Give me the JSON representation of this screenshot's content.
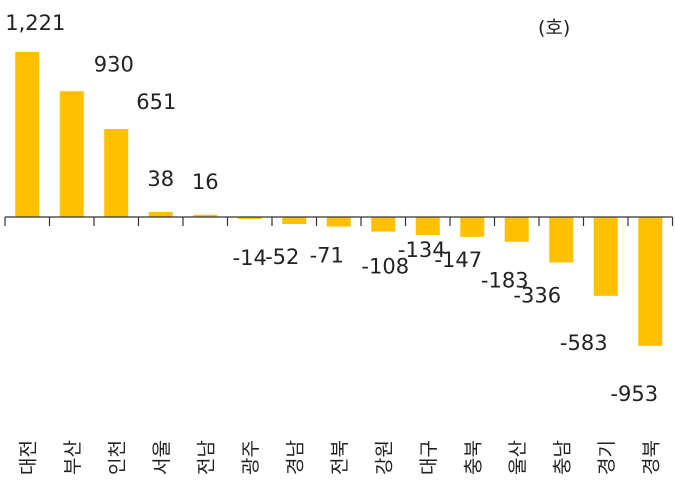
{
  "chart_data": {
    "type": "bar",
    "unit_label": "(호)",
    "categories": [
      "대전",
      "부산",
      "인천",
      "서울",
      "전남",
      "광주",
      "경남",
      "전북",
      "강원",
      "대구",
      "충북",
      "울산",
      "충남",
      "경기",
      "경북"
    ],
    "values": [
      1221,
      930,
      651,
      38,
      16,
      -14,
      -52,
      -71,
      -108,
      -134,
      -147,
      -183,
      -336,
      -583,
      -953
    ],
    "value_labels": [
      "1,221",
      "930",
      "651",
      "38",
      "16",
      "-14",
      "-52",
      "-71",
      "-108",
      "-134",
      "-147",
      "-183",
      "-336",
      "-583",
      "-953"
    ],
    "ylim": [
      -953,
      1221
    ],
    "bar_color": "#FFC000",
    "axis_color": "#333333",
    "grid": false,
    "legend": "none"
  }
}
